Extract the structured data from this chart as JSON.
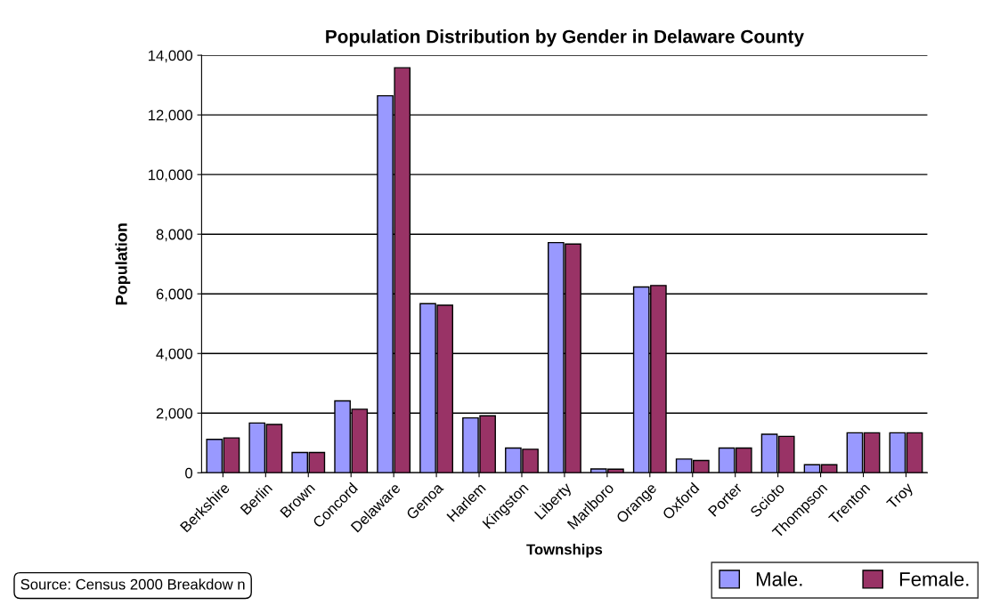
{
  "chart_data": {
    "type": "bar",
    "title": "Population Distribution by Gender in Delaware County",
    "xlabel": "Townships",
    "ylabel": "Population",
    "categories": [
      "Berkshire",
      "Berlin",
      "Brown",
      "Concord",
      "Delaware",
      "Genoa",
      "Harlem",
      "Kingston",
      "Liberty",
      "Marlboro",
      "Orange",
      "Oxford",
      "Porter",
      "Scioto",
      "Thompson",
      "Trenton",
      "Troy"
    ],
    "series": [
      {
        "name": "Male.",
        "color": "#9999ff",
        "values": [
          1120,
          1670,
          680,
          2410,
          12640,
          5670,
          1840,
          830,
          7720,
          130,
          6230,
          460,
          830,
          1290,
          270,
          1340,
          1340
        ]
      },
      {
        "name": "Female.",
        "color": "#993366",
        "values": [
          1170,
          1620,
          680,
          2130,
          13580,
          5620,
          1910,
          790,
          7670,
          120,
          6280,
          410,
          830,
          1220,
          270,
          1340,
          1340
        ]
      }
    ],
    "ylim": [
      0,
      14000
    ],
    "yticks": [
      0,
      {
        "value": 2000,
        "label": "2,000"
      },
      {
        "value": 4000,
        "label": "4,000"
      },
      {
        "value": 6000,
        "label": "6,000"
      },
      {
        "value": 8000,
        "label": "8,000"
      },
      {
        "value": 10000,
        "label": "10,000"
      },
      {
        "value": 12000,
        "label": "12,000"
      },
      {
        "value": 14000,
        "label": "14,000"
      }
    ],
    "grid": "y",
    "legend": "bottom right",
    "annotations": [
      "Source: Census 2000 Breakdow n"
    ]
  }
}
